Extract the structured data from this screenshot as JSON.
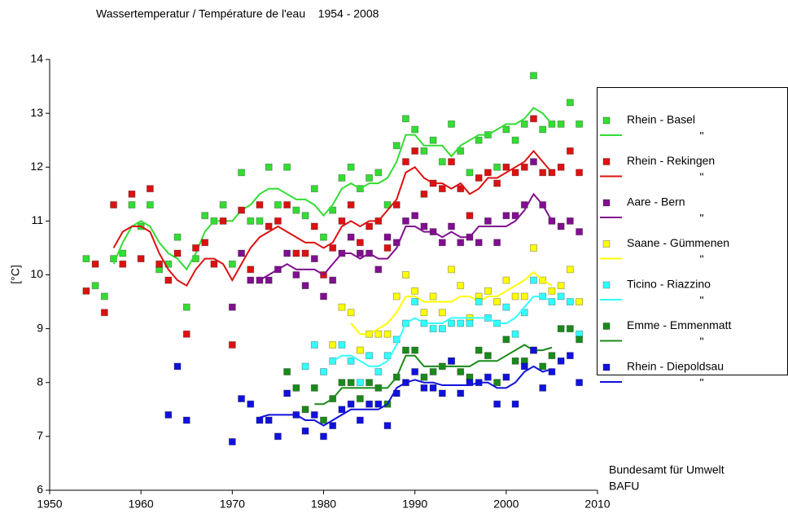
{
  "chart_data": {
    "type": "scatter",
    "title": "Wassertemperatur / Température de l'eau    1954 - 2008",
    "y_label": "[°C]",
    "source": [
      "Bundesamt für Umwelt",
      "BAFU"
    ],
    "xlim": [
      1950,
      2010
    ],
    "xticks": [
      1950,
      1960,
      1970,
      1980,
      1990,
      2000,
      2010
    ],
    "ylim": [
      6,
      14
    ],
    "yticks": [
      6,
      7,
      8,
      9,
      10,
      11,
      12,
      13,
      14
    ],
    "grid": false,
    "legend": "right",
    "series": [
      {
        "name": "Rhein - Basel",
        "color": "#33dd33",
        "line_label": "\"",
        "x": [
          1954,
          1955,
          1956,
          1957,
          1958,
          1959,
          1960,
          1961,
          1962,
          1963,
          1964,
          1965,
          1966,
          1967,
          1968,
          1969,
          1970,
          1971,
          1972,
          1973,
          1974,
          1975,
          1976,
          1977,
          1978,
          1979,
          1980,
          1981,
          1982,
          1983,
          1984,
          1985,
          1986,
          1987,
          1988,
          1989,
          1990,
          1991,
          1992,
          1993,
          1994,
          1995,
          1996,
          1997,
          1998,
          1999,
          2000,
          2001,
          2002,
          2003,
          2004,
          2005,
          2006,
          2007,
          2008
        ],
        "values": [
          10.3,
          9.8,
          9.6,
          10.3,
          10.4,
          11.3,
          10.9,
          11.3,
          10.1,
          10.2,
          10.7,
          9.4,
          10.3,
          11.1,
          11.0,
          11.3,
          10.2,
          11.9,
          11.0,
          11.0,
          12.0,
          11.3,
          12.0,
          11.2,
          11.1,
          11.6,
          10.7,
          11.2,
          11.8,
          12.0,
          11.6,
          11.8,
          11.9,
          11.3,
          12.4,
          12.9,
          12.7,
          12.3,
          12.5,
          12.1,
          12.8,
          12.3,
          11.9,
          12.5,
          12.6,
          12.0,
          12.7,
          12.5,
          12.8,
          13.7,
          12.7,
          12.8,
          12.8,
          13.2,
          12.8
        ],
        "line_x": [
          1957,
          1958,
          1959,
          1960,
          1961,
          1962,
          1963,
          1964,
          1965,
          1966,
          1967,
          1968,
          1969,
          1970,
          1971,
          1972,
          1973,
          1974,
          1975,
          1976,
          1977,
          1978,
          1979,
          1980,
          1981,
          1982,
          1983,
          1984,
          1985,
          1986,
          1987,
          1988,
          1989,
          1990,
          1991,
          1992,
          1993,
          1994,
          1995,
          1996,
          1997,
          1998,
          1999,
          2000,
          2001,
          2002,
          2003,
          2004,
          2005
        ],
        "line_values": [
          10.2,
          10.6,
          10.9,
          11.0,
          10.9,
          10.6,
          10.4,
          10.3,
          10.1,
          10.4,
          10.8,
          11.0,
          11.0,
          11.0,
          11.2,
          11.3,
          11.5,
          11.6,
          11.6,
          11.5,
          11.4,
          11.4,
          11.3,
          11.1,
          11.3,
          11.6,
          11.7,
          11.6,
          11.7,
          11.7,
          11.8,
          12.1,
          12.6,
          12.6,
          12.4,
          12.4,
          12.4,
          12.2,
          12.4,
          12.5,
          12.6,
          12.6,
          12.7,
          12.8,
          12.8,
          12.9,
          13.1,
          13.0,
          12.8
        ]
      },
      {
        "name": "Rhein - Rekingen",
        "color": "#dd1111",
        "line_label": "\"",
        "x": [
          1954,
          1955,
          1956,
          1957,
          1958,
          1959,
          1960,
          1961,
          1962,
          1963,
          1964,
          1965,
          1966,
          1967,
          1968,
          1969,
          1970,
          1971,
          1972,
          1973,
          1974,
          1975,
          1976,
          1977,
          1978,
          1979,
          1980,
          1981,
          1982,
          1983,
          1984,
          1985,
          1986,
          1987,
          1988,
          1989,
          1990,
          1991,
          1992,
          1993,
          1994,
          1995,
          1996,
          1997,
          1998,
          1999,
          2000,
          2001,
          2002,
          2003,
          2004,
          2005,
          2006,
          2007,
          2008
        ],
        "values": [
          9.7,
          10.2,
          9.3,
          11.3,
          10.2,
          11.5,
          10.3,
          11.6,
          10.2,
          9.9,
          10.4,
          8.9,
          10.5,
          10.6,
          10.2,
          11.0,
          8.7,
          11.2,
          10.1,
          11.3,
          10.9,
          11.0,
          11.3,
          10.4,
          10.4,
          10.9,
          10.0,
          10.5,
          11.0,
          11.3,
          10.6,
          10.9,
          11.0,
          10.5,
          11.3,
          12.1,
          12.3,
          11.5,
          11.7,
          11.6,
          12.1,
          11.6,
          11.1,
          11.8,
          11.9,
          11.7,
          12.0,
          11.9,
          12.0,
          12.9,
          11.9,
          11.9,
          12.0,
          12.3,
          11.9
        ],
        "line_x": [
          1957,
          1958,
          1959,
          1960,
          1961,
          1962,
          1963,
          1964,
          1965,
          1966,
          1967,
          1968,
          1969,
          1970,
          1971,
          1972,
          1973,
          1974,
          1975,
          1976,
          1977,
          1978,
          1979,
          1980,
          1981,
          1982,
          1983,
          1984,
          1985,
          1986,
          1987,
          1988,
          1989,
          1990,
          1991,
          1992,
          1993,
          1994,
          1995,
          1996,
          1997,
          1998,
          1999,
          2000,
          2001,
          2002,
          2003,
          2004,
          2005
        ],
        "line_values": [
          10.5,
          10.8,
          10.9,
          10.9,
          10.8,
          10.4,
          10.1,
          9.9,
          9.8,
          10.1,
          10.3,
          10.3,
          10.2,
          9.9,
          10.2,
          10.5,
          10.7,
          10.8,
          10.9,
          10.8,
          10.7,
          10.6,
          10.6,
          10.5,
          10.6,
          10.9,
          11.0,
          10.9,
          11.0,
          11.0,
          11.2,
          11.4,
          11.9,
          12.0,
          11.8,
          11.7,
          11.7,
          11.6,
          11.7,
          11.5,
          11.6,
          11.8,
          11.8,
          11.9,
          12.0,
          12.1,
          12.3,
          12.1,
          11.9
        ]
      },
      {
        "name": "Aare - Bern",
        "color": "#800f8f",
        "line_label": "\"",
        "x": [
          1970,
          1971,
          1972,
          1973,
          1974,
          1975,
          1976,
          1977,
          1978,
          1979,
          1980,
          1981,
          1982,
          1983,
          1984,
          1985,
          1986,
          1987,
          1988,
          1989,
          1990,
          1991,
          1992,
          1993,
          1994,
          1995,
          1996,
          1997,
          1998,
          1999,
          2000,
          2001,
          2002,
          2003,
          2004,
          2005,
          2006,
          2007,
          2008
        ],
        "values": [
          9.4,
          10.4,
          9.9,
          9.9,
          9.9,
          10.1,
          10.4,
          10.0,
          9.8,
          10.3,
          9.6,
          9.9,
          10.4,
          10.7,
          10.4,
          10.4,
          10.1,
          10.7,
          10.6,
          11.0,
          11.1,
          10.9,
          10.8,
          10.6,
          10.9,
          10.6,
          10.7,
          10.6,
          11.0,
          10.6,
          11.1,
          11.1,
          11.3,
          12.1,
          11.3,
          11.0,
          10.9,
          11.0,
          10.8
        ],
        "line_x": [
          1973,
          1974,
          1975,
          1976,
          1977,
          1978,
          1979,
          1980,
          1981,
          1982,
          1983,
          1984,
          1985,
          1986,
          1987,
          1988,
          1989,
          1990,
          1991,
          1992,
          1993,
          1994,
          1995,
          1996,
          1997,
          1998,
          1999,
          2000,
          2001,
          2002,
          2003,
          2004,
          2005
        ],
        "line_values": [
          9.9,
          10.0,
          10.1,
          10.2,
          10.1,
          10.1,
          10.1,
          10.0,
          10.2,
          10.4,
          10.4,
          10.3,
          10.4,
          10.3,
          10.3,
          10.5,
          10.9,
          10.9,
          10.8,
          10.8,
          10.7,
          10.8,
          10.7,
          10.7,
          10.9,
          10.9,
          10.9,
          10.9,
          11.0,
          11.2,
          11.5,
          11.3,
          11.0
        ]
      },
      {
        "name": "Saane - Gümmenen",
        "color": "#ffff00",
        "line_label": "\"",
        "x": [
          1981,
          1982,
          1983,
          1984,
          1985,
          1986,
          1987,
          1988,
          1989,
          1990,
          1991,
          1992,
          1993,
          1994,
          1995,
          1996,
          1997,
          1998,
          1999,
          2000,
          2001,
          2002,
          2003,
          2004,
          2005,
          2006,
          2007,
          2008
        ],
        "values": [
          8.7,
          9.4,
          9.3,
          8.6,
          8.9,
          8.9,
          8.9,
          9.6,
          10.0,
          9.7,
          9.3,
          9.6,
          9.3,
          10.1,
          9.8,
          9.2,
          9.6,
          9.7,
          9.5,
          9.9,
          9.6,
          9.6,
          10.5,
          9.9,
          9.7,
          9.8,
          10.1,
          9.5
        ],
        "line_x": [
          1983,
          1984,
          1985,
          1986,
          1987,
          1988,
          1989,
          1990,
          1991,
          1992,
          1993,
          1994,
          1995,
          1996,
          1997,
          1998,
          1999,
          2000,
          2001,
          2002,
          2003,
          2004,
          2005
        ],
        "line_values": [
          9.1,
          8.9,
          8.9,
          9.0,
          9.1,
          9.3,
          9.6,
          9.6,
          9.5,
          9.5,
          9.5,
          9.5,
          9.6,
          9.6,
          9.5,
          9.6,
          9.6,
          9.7,
          9.8,
          9.9,
          10.05,
          9.9,
          9.8
        ]
      },
      {
        "name": "Ticino - Riazzino",
        "color": "#33ffff",
        "line_label": "\"",
        "x": [
          1978,
          1979,
          1980,
          1981,
          1982,
          1983,
          1984,
          1985,
          1986,
          1987,
          1988,
          1989,
          1990,
          1991,
          1992,
          1993,
          1994,
          1995,
          1996,
          1997,
          1998,
          1999,
          2000,
          2001,
          2002,
          2003,
          2004,
          2005,
          2006,
          2007,
          2008
        ],
        "values": [
          8.3,
          8.7,
          8.2,
          8.4,
          8.7,
          8.4,
          8.0,
          8.5,
          8.2,
          8.5,
          8.8,
          9.1,
          9.5,
          9.1,
          9.0,
          9.0,
          9.1,
          9.1,
          9.1,
          9.5,
          9.2,
          9.1,
          9.4,
          8.9,
          9.3,
          9.9,
          9.6,
          9.5,
          9.6,
          9.5,
          8.9
        ],
        "line_x": [
          1981,
          1982,
          1983,
          1984,
          1985,
          1986,
          1987,
          1988,
          1989,
          1990,
          1991,
          1992,
          1993,
          1994,
          1995,
          1996,
          1997,
          1998,
          1999,
          2000,
          2001,
          2002,
          2003,
          2004,
          2005
        ],
        "line_values": [
          8.4,
          8.5,
          8.5,
          8.4,
          8.3,
          8.3,
          8.4,
          8.7,
          9.1,
          9.2,
          9.1,
          9.1,
          9.1,
          9.2,
          9.2,
          9.2,
          9.2,
          9.2,
          9.1,
          9.1,
          9.2,
          9.4,
          9.6,
          9.6,
          9.5
        ]
      },
      {
        "name": "Emme - Emmenmatt",
        "color": "#1a8a1a",
        "line_label": "\"",
        "x": [
          1976,
          1977,
          1978,
          1979,
          1980,
          1981,
          1982,
          1983,
          1984,
          1985,
          1986,
          1987,
          1988,
          1989,
          1990,
          1991,
          1992,
          1993,
          1994,
          1995,
          1996,
          1997,
          1998,
          1999,
          2000,
          2001,
          2002,
          2003,
          2004,
          2005,
          2006,
          2007,
          2008
        ],
        "values": [
          8.2,
          7.9,
          7.5,
          7.9,
          7.3,
          7.7,
          8.0,
          8.0,
          7.7,
          8.0,
          7.9,
          7.6,
          8.1,
          8.6,
          8.6,
          8.1,
          8.2,
          8.3,
          8.4,
          8.2,
          8.1,
          8.6,
          8.5,
          8.0,
          8.8,
          8.4,
          8.4,
          8.6,
          8.3,
          8.5,
          9.0,
          9.0,
          8.8
        ],
        "line_x": [
          1979,
          1980,
          1981,
          1982,
          1983,
          1984,
          1985,
          1986,
          1987,
          1988,
          1989,
          1990,
          1991,
          1992,
          1993,
          1994,
          1995,
          1996,
          1997,
          1998,
          1999,
          2000,
          2001,
          2002,
          2003,
          2004,
          2005
        ],
        "line_values": [
          7.6,
          7.6,
          7.7,
          7.9,
          7.9,
          7.9,
          7.9,
          7.9,
          7.9,
          8.1,
          8.5,
          8.5,
          8.3,
          8.3,
          8.3,
          8.3,
          8.3,
          8.3,
          8.4,
          8.4,
          8.4,
          8.5,
          8.6,
          8.7,
          8.6,
          8.6,
          8.65
        ]
      },
      {
        "name": "Rhein - Diepoldsau",
        "color": "#1111dd",
        "line_label": "\"",
        "x": [
          1963,
          1964,
          1965,
          1970,
          1971,
          1972,
          1973,
          1974,
          1975,
          1976,
          1977,
          1978,
          1979,
          1980,
          1981,
          1982,
          1983,
          1984,
          1985,
          1986,
          1987,
          1988,
          1989,
          1990,
          1991,
          1992,
          1993,
          1994,
          1995,
          1996,
          1997,
          1998,
          1999,
          2000,
          2001,
          2002,
          2003,
          2004,
          2005,
          2006,
          2007,
          2008
        ],
        "values": [
          7.4,
          8.3,
          7.3,
          6.9,
          7.7,
          7.6,
          7.3,
          7.3,
          7.0,
          7.8,
          7.4,
          7.1,
          7.4,
          7.0,
          7.2,
          7.5,
          7.6,
          7.3,
          7.6,
          7.6,
          7.2,
          7.8,
          8.0,
          8.2,
          7.9,
          7.9,
          7.8,
          8.4,
          7.8,
          8.0,
          8.0,
          8.1,
          7.6,
          8.1,
          7.6,
          8.3,
          8.6,
          7.9,
          8.2,
          8.4,
          8.5,
          8.0
        ],
        "line_x": [
          1973,
          1974,
          1975,
          1976,
          1977,
          1978,
          1979,
          1980,
          1981,
          1982,
          1983,
          1984,
          1985,
          1986,
          1987,
          1988,
          1989,
          1990,
          1991,
          1992,
          1993,
          1994,
          1995,
          1996,
          1997,
          1998,
          1999,
          2000,
          2001,
          2002,
          2003,
          2004,
          2005
        ],
        "line_values": [
          7.35,
          7.4,
          7.4,
          7.4,
          7.4,
          7.3,
          7.3,
          7.2,
          7.3,
          7.4,
          7.5,
          7.5,
          7.5,
          7.5,
          7.6,
          7.9,
          8.0,
          8.05,
          8.0,
          8.0,
          7.95,
          7.95,
          7.95,
          7.95,
          8.0,
          8.0,
          7.9,
          7.9,
          8.0,
          8.2,
          8.3,
          8.2,
          8.25
        ]
      }
    ]
  }
}
